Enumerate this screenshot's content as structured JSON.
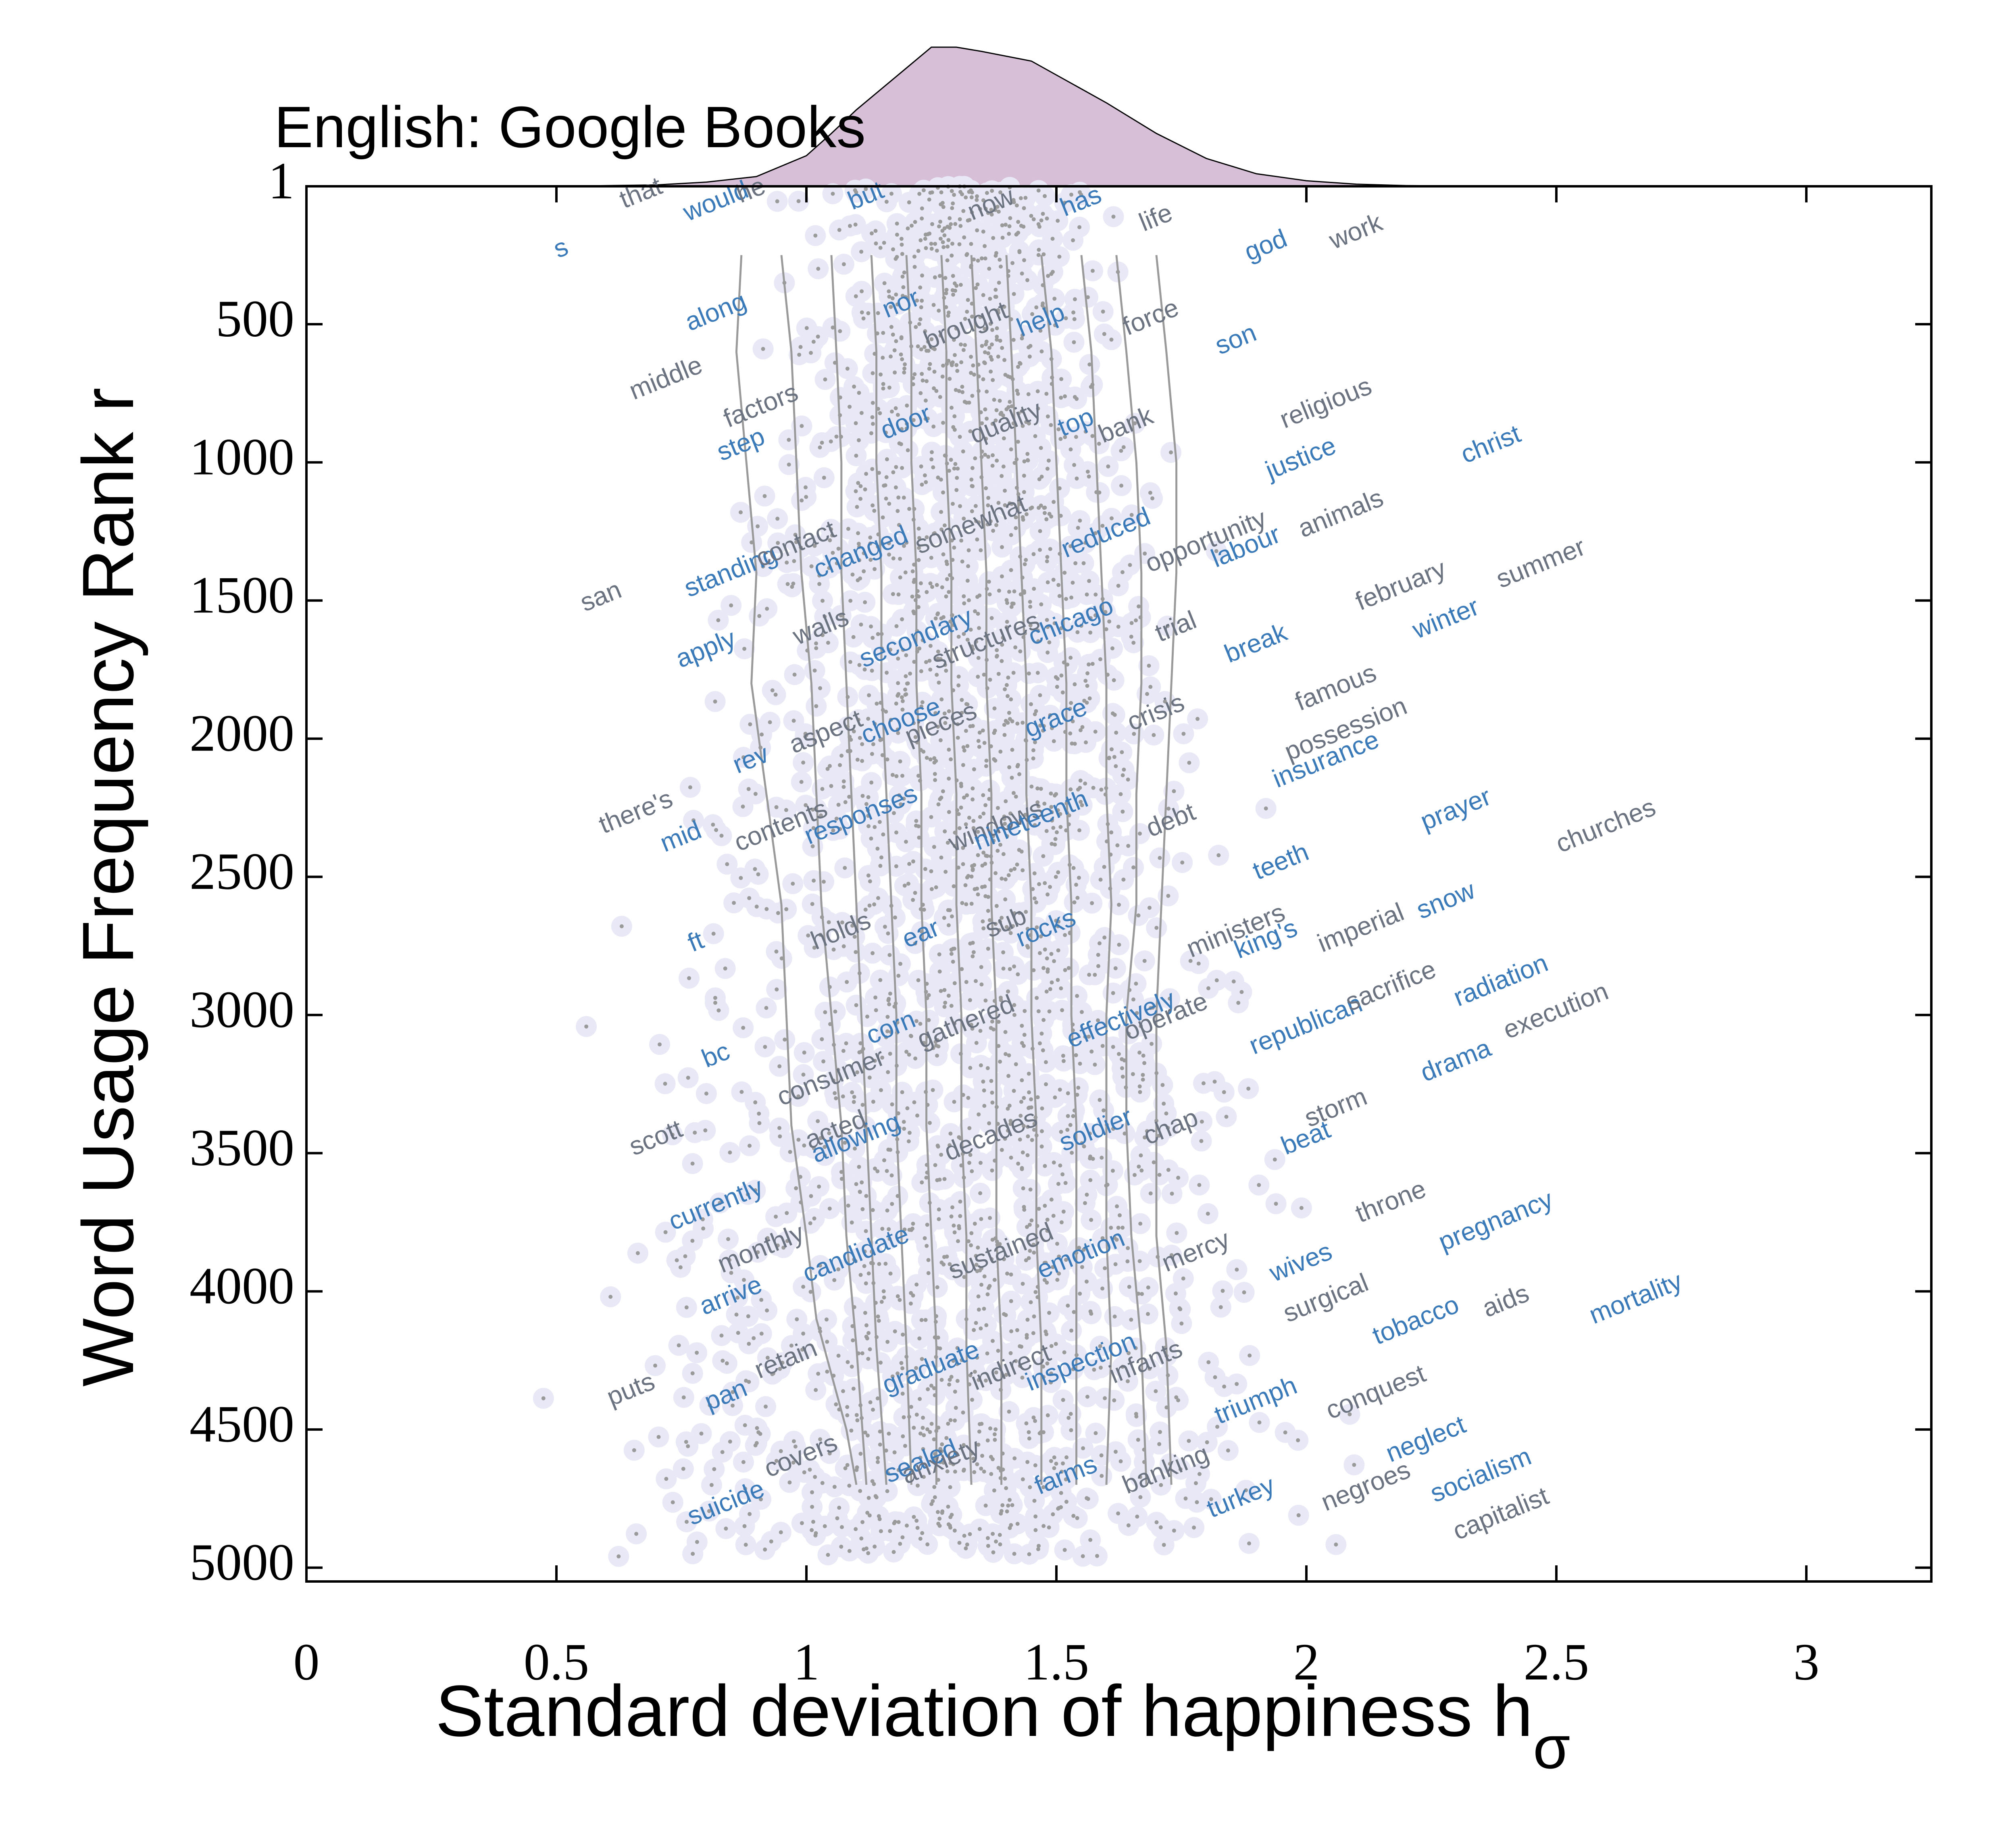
{
  "chart_data": {
    "type": "scatter",
    "title": "English: Google Books",
    "xlabel": "Standard deviation of happiness h",
    "xlabel_subscript": "σ",
    "ylabel": "Word Usage Frequency Rank r",
    "xlim": [
      0,
      3.25
    ],
    "ylim": [
      1,
      5050
    ],
    "y_inverted": true,
    "x_ticks": [
      0,
      0.5,
      1,
      1.5,
      2,
      2.5,
      3
    ],
    "x_tick_labels": [
      "0",
      "0.5",
      "1",
      "1.5",
      "2",
      "2.5",
      "3"
    ],
    "y_ticks": [
      1,
      500,
      1000,
      1500,
      2000,
      2500,
      3000,
      3500,
      4000,
      4500,
      5000
    ],
    "y_tick_labels": [
      "1",
      "500",
      "1000",
      "1500",
      "2000",
      "2500",
      "3000",
      "3500",
      "4000",
      "4500",
      "5000"
    ],
    "grid": false,
    "colors": {
      "word_blue": "#3a7ab8",
      "word_gray": "#6b7280",
      "points": "#9a9a9a",
      "halo": "#e8e8f6",
      "density_fill": "#d8bfd8",
      "contour": "#9a9a9a"
    },
    "marginal_density": {
      "x": [
        0.5,
        0.7,
        0.8,
        0.9,
        1.0,
        1.05,
        1.1,
        1.2,
        1.25,
        1.3,
        1.35,
        1.45,
        1.5,
        1.6,
        1.7,
        1.8,
        1.9,
        2.0,
        2.1,
        2.2,
        2.4
      ],
      "y": [
        0,
        0.01,
        0.03,
        0.07,
        0.22,
        0.38,
        0.55,
        0.85,
        1.0,
        1.0,
        0.97,
        0.9,
        0.8,
        0.6,
        0.38,
        0.2,
        0.09,
        0.04,
        0.015,
        0.005,
        0
      ]
    },
    "contours": [
      {
        "hsigma": [
          0.87,
          0.86,
          0.88,
          0.9,
          0.89,
          0.92,
          0.95,
          0.96,
          0.97,
          1.0,
          1.02,
          1.05,
          1.08,
          1.1
        ],
        "rank": [
          250,
          600,
          1000,
          1400,
          1800,
          2200,
          2600,
          3000,
          3400,
          3800,
          4100,
          4300,
          4500,
          4700
        ]
      },
      {
        "hsigma": [
          0.95,
          0.97,
          0.98,
          0.99,
          1.01,
          1.02,
          1.03,
          1.05,
          1.07,
          1.08,
          1.1,
          1.12
        ],
        "rank": [
          250,
          600,
          1000,
          1400,
          1800,
          2200,
          2600,
          3000,
          3400,
          3800,
          4200,
          4700
        ]
      },
      {
        "hsigma": [
          1.05,
          1.06,
          1.07,
          1.07,
          1.08,
          1.09,
          1.1,
          1.11,
          1.12,
          1.13,
          1.14,
          1.16
        ],
        "rank": [
          250,
          600,
          1000,
          1400,
          1800,
          2200,
          2600,
          3000,
          3400,
          3800,
          4200,
          4700
        ]
      },
      {
        "hsigma": [
          1.13,
          1.14,
          1.14,
          1.15,
          1.15,
          1.16,
          1.17,
          1.18,
          1.18,
          1.19,
          1.2,
          1.21
        ],
        "rank": [
          250,
          600,
          1000,
          1400,
          1800,
          2200,
          2600,
          3000,
          3400,
          3800,
          4200,
          4700
        ]
      },
      {
        "hsigma": [
          1.2,
          1.21,
          1.21,
          1.22,
          1.22,
          1.23,
          1.23,
          1.24,
          1.24,
          1.25,
          1.26,
          1.26
        ],
        "rank": [
          250,
          600,
          1000,
          1400,
          1800,
          2200,
          2600,
          3000,
          3400,
          3800,
          4200,
          4700
        ]
      },
      {
        "hsigma": [
          1.27,
          1.28,
          1.28,
          1.29,
          1.29,
          1.3,
          1.3,
          1.31,
          1.31,
          1.32,
          1.32,
          1.33
        ],
        "rank": [
          250,
          600,
          1000,
          1400,
          1800,
          2200,
          2600,
          3000,
          3400,
          3800,
          4200,
          4700
        ]
      },
      {
        "hsigma": [
          1.33,
          1.34,
          1.35,
          1.36,
          1.36,
          1.37,
          1.37,
          1.38,
          1.38,
          1.38,
          1.39,
          1.39
        ],
        "rank": [
          250,
          600,
          1000,
          1400,
          1800,
          2200,
          2600,
          3000,
          3400,
          3800,
          4200,
          4700
        ]
      },
      {
        "hsigma": [
          1.4,
          1.41,
          1.42,
          1.43,
          1.44,
          1.44,
          1.45,
          1.45,
          1.46,
          1.46,
          1.47,
          1.47
        ],
        "rank": [
          250,
          600,
          1000,
          1400,
          1800,
          2200,
          2600,
          3000,
          3400,
          3800,
          4200,
          4700
        ]
      },
      {
        "hsigma": [
          1.47,
          1.49,
          1.5,
          1.51,
          1.52,
          1.52,
          1.53,
          1.53,
          1.54,
          1.54,
          1.54,
          1.54
        ],
        "rank": [
          250,
          600,
          1000,
          1400,
          1800,
          2200,
          2600,
          3000,
          3400,
          3800,
          4200,
          4700
        ]
      },
      {
        "hsigma": [
          1.55,
          1.57,
          1.58,
          1.59,
          1.6,
          1.6,
          1.61,
          1.6,
          1.6,
          1.6,
          1.61,
          1.6
        ],
        "rank": [
          250,
          600,
          1000,
          1400,
          1800,
          2200,
          2600,
          3000,
          3400,
          3800,
          4200,
          4700
        ]
      },
      {
        "hsigma": [
          1.62,
          1.64,
          1.66,
          1.67,
          1.67,
          1.66,
          1.66,
          1.64,
          1.64,
          1.65,
          1.67,
          1.68
        ],
        "rank": [
          250,
          600,
          1000,
          1400,
          1800,
          2200,
          2600,
          3000,
          3400,
          3800,
          4200,
          4700
        ]
      },
      {
        "hsigma": [
          1.7,
          1.72,
          1.74,
          1.74,
          1.73,
          1.72,
          1.71,
          1.7,
          1.7,
          1.7,
          1.72,
          1.73
        ],
        "rank": [
          250,
          600,
          1000,
          1400,
          1800,
          2200,
          2600,
          3000,
          3400,
          3800,
          4200,
          4700
        ]
      }
    ],
    "words": [
      {
        "w": "s",
        "x": 0.51,
        "r": 230,
        "c": "blue"
      },
      {
        "w": "that",
        "x": 0.67,
        "r": 30,
        "c": "gray"
      },
      {
        "w": "would",
        "x": 0.82,
        "r": 60,
        "c": "blue"
      },
      {
        "w": "he",
        "x": 0.89,
        "r": 20,
        "c": "gray"
      },
      {
        "w": "but",
        "x": 1.12,
        "r": 40,
        "c": "blue"
      },
      {
        "w": "now",
        "x": 1.37,
        "r": 70,
        "c": "gray"
      },
      {
        "w": "has",
        "x": 1.55,
        "r": 60,
        "c": "blue"
      },
      {
        "w": "life",
        "x": 1.7,
        "r": 120,
        "c": "gray"
      },
      {
        "w": "god",
        "x": 1.92,
        "r": 220,
        "c": "blue"
      },
      {
        "w": "work",
        "x": 2.1,
        "r": 170,
        "c": "gray"
      },
      {
        "w": "along",
        "x": 0.82,
        "r": 460,
        "c": "blue"
      },
      {
        "w": "middle",
        "x": 0.72,
        "r": 700,
        "c": "gray"
      },
      {
        "w": "nor",
        "x": 1.19,
        "r": 430,
        "c": "blue"
      },
      {
        "w": "brought",
        "x": 1.32,
        "r": 510,
        "c": "gray"
      },
      {
        "w": "help",
        "x": 1.47,
        "r": 490,
        "c": "blue"
      },
      {
        "w": "force",
        "x": 1.69,
        "r": 480,
        "c": "gray"
      },
      {
        "w": "son",
        "x": 1.86,
        "r": 560,
        "c": "blue"
      },
      {
        "w": "religious",
        "x": 2.04,
        "r": 790,
        "c": "gray"
      },
      {
        "w": "factors",
        "x": 0.91,
        "r": 800,
        "c": "gray"
      },
      {
        "w": "step",
        "x": 0.87,
        "r": 940,
        "c": "blue"
      },
      {
        "w": "door",
        "x": 1.2,
        "r": 860,
        "c": "blue"
      },
      {
        "w": "quality",
        "x": 1.4,
        "r": 860,
        "c": "gray"
      },
      {
        "w": "top",
        "x": 1.54,
        "r": 860,
        "c": "blue"
      },
      {
        "w": "bank",
        "x": 1.64,
        "r": 870,
        "c": "gray"
      },
      {
        "w": "justice",
        "x": 1.99,
        "r": 990,
        "c": "blue"
      },
      {
        "w": "christ",
        "x": 2.37,
        "r": 940,
        "c": "blue"
      },
      {
        "w": "standing",
        "x": 0.85,
        "r": 1400,
        "c": "blue"
      },
      {
        "w": "contact",
        "x": 0.98,
        "r": 1300,
        "c": "gray"
      },
      {
        "w": "changed",
        "x": 1.11,
        "r": 1330,
        "c": "blue"
      },
      {
        "w": "somewhat",
        "x": 1.33,
        "r": 1230,
        "c": "gray"
      },
      {
        "w": "reduced",
        "x": 1.6,
        "r": 1260,
        "c": "blue"
      },
      {
        "w": "opportunity",
        "x": 1.8,
        "r": 1290,
        "c": "gray"
      },
      {
        "w": "labour",
        "x": 1.88,
        "r": 1310,
        "c": "blue"
      },
      {
        "w": "animals",
        "x": 2.07,
        "r": 1190,
        "c": "gray"
      },
      {
        "w": "san",
        "x": 0.59,
        "r": 1490,
        "c": "gray"
      },
      {
        "w": "february",
        "x": 2.19,
        "r": 1450,
        "c": "gray"
      },
      {
        "w": "summer",
        "x": 2.47,
        "r": 1370,
        "c": "gray"
      },
      {
        "w": "apply",
        "x": 0.8,
        "r": 1680,
        "c": "blue"
      },
      {
        "w": "walls",
        "x": 1.03,
        "r": 1600,
        "c": "gray"
      },
      {
        "w": "secondary",
        "x": 1.22,
        "r": 1640,
        "c": "blue"
      },
      {
        "w": "structures",
        "x": 1.36,
        "r": 1650,
        "c": "gray"
      },
      {
        "w": "chicago",
        "x": 1.53,
        "r": 1580,
        "c": "blue"
      },
      {
        "w": "trial",
        "x": 1.74,
        "r": 1600,
        "c": "gray"
      },
      {
        "w": "break",
        "x": 1.9,
        "r": 1660,
        "c": "blue"
      },
      {
        "w": "winter",
        "x": 2.28,
        "r": 1570,
        "c": "blue"
      },
      {
        "w": "famous",
        "x": 2.06,
        "r": 1820,
        "c": "gray"
      },
      {
        "w": "aspect",
        "x": 1.04,
        "r": 1980,
        "c": "gray"
      },
      {
        "w": "choose",
        "x": 1.19,
        "r": 1940,
        "c": "blue"
      },
      {
        "w": "pieces",
        "x": 1.27,
        "r": 1950,
        "c": "gray"
      },
      {
        "w": "grace",
        "x": 1.5,
        "r": 1930,
        "c": "blue"
      },
      {
        "w": "crisis",
        "x": 1.7,
        "r": 1910,
        "c": "gray"
      },
      {
        "w": "possession",
        "x": 2.08,
        "r": 1970,
        "c": "gray"
      },
      {
        "w": "rev",
        "x": 0.89,
        "r": 2080,
        "c": "blue"
      },
      {
        "w": "insurance",
        "x": 2.04,
        "r": 2080,
        "c": "blue"
      },
      {
        "w": "there's",
        "x": 0.66,
        "r": 2270,
        "c": "gray"
      },
      {
        "w": "mid",
        "x": 0.75,
        "r": 2360,
        "c": "blue"
      },
      {
        "w": "contents",
        "x": 0.95,
        "r": 2320,
        "c": "gray"
      },
      {
        "w": "responses",
        "x": 1.11,
        "r": 2280,
        "c": "blue"
      },
      {
        "w": "windows",
        "x": 1.38,
        "r": 2320,
        "c": "gray"
      },
      {
        "w": "nineteenth",
        "x": 1.45,
        "r": 2300,
        "c": "blue"
      },
      {
        "w": "debt",
        "x": 1.73,
        "r": 2300,
        "c": "gray"
      },
      {
        "w": "prayer",
        "x": 2.3,
        "r": 2260,
        "c": "blue"
      },
      {
        "w": "churches",
        "x": 2.6,
        "r": 2320,
        "c": "gray"
      },
      {
        "w": "teeth",
        "x": 1.95,
        "r": 2450,
        "c": "blue"
      },
      {
        "w": "snow",
        "x": 2.28,
        "r": 2590,
        "c": "blue"
      },
      {
        "w": "ft",
        "x": 0.78,
        "r": 2740,
        "c": "blue"
      },
      {
        "w": "holds",
        "x": 1.07,
        "r": 2700,
        "c": "gray"
      },
      {
        "w": "ear",
        "x": 1.23,
        "r": 2710,
        "c": "blue"
      },
      {
        "w": "sub",
        "x": 1.4,
        "r": 2670,
        "c": "gray"
      },
      {
        "w": "rocks",
        "x": 1.48,
        "r": 2690,
        "c": "blue"
      },
      {
        "w": "ministers",
        "x": 1.86,
        "r": 2700,
        "c": "gray"
      },
      {
        "w": "king's",
        "x": 1.92,
        "r": 2730,
        "c": "blue"
      },
      {
        "w": "imperial",
        "x": 2.11,
        "r": 2690,
        "c": "gray"
      },
      {
        "w": "radiation",
        "x": 2.39,
        "r": 2880,
        "c": "blue"
      },
      {
        "w": "corn",
        "x": 1.17,
        "r": 3050,
        "c": "blue"
      },
      {
        "w": "gathered",
        "x": 1.32,
        "r": 3030,
        "c": "gray"
      },
      {
        "w": "effectively",
        "x": 1.63,
        "r": 3020,
        "c": "blue"
      },
      {
        "w": "operate",
        "x": 1.72,
        "r": 3010,
        "c": "gray"
      },
      {
        "w": "republican",
        "x": 2.0,
        "r": 3040,
        "c": "blue"
      },
      {
        "w": "sacrifice",
        "x": 2.17,
        "r": 2900,
        "c": "gray"
      },
      {
        "w": "execution",
        "x": 2.5,
        "r": 2990,
        "c": "gray"
      },
      {
        "w": "bc",
        "x": 0.82,
        "r": 3150,
        "c": "blue"
      },
      {
        "w": "consumer",
        "x": 1.05,
        "r": 3230,
        "c": "gray"
      },
      {
        "w": "drama",
        "x": 2.3,
        "r": 3170,
        "c": "blue"
      },
      {
        "w": "scott",
        "x": 0.7,
        "r": 3450,
        "c": "gray"
      },
      {
        "w": "acted",
        "x": 1.06,
        "r": 3420,
        "c": "gray"
      },
      {
        "w": "allowing",
        "x": 1.1,
        "r": 3450,
        "c": "blue"
      },
      {
        "w": "decades",
        "x": 1.37,
        "r": 3440,
        "c": "gray"
      },
      {
        "w": "soldier",
        "x": 1.58,
        "r": 3420,
        "c": "blue"
      },
      {
        "w": "chap",
        "x": 1.73,
        "r": 3410,
        "c": "gray"
      },
      {
        "w": "storm",
        "x": 2.06,
        "r": 3340,
        "c": "gray"
      },
      {
        "w": "beat",
        "x": 2.0,
        "r": 3450,
        "c": "blue"
      },
      {
        "w": "currently",
        "x": 0.82,
        "r": 3690,
        "c": "blue"
      },
      {
        "w": "throne",
        "x": 2.17,
        "r": 3680,
        "c": "gray"
      },
      {
        "w": "pregnancy",
        "x": 2.38,
        "r": 3750,
        "c": "blue"
      },
      {
        "w": "monthly",
        "x": 0.91,
        "r": 3850,
        "c": "gray"
      },
      {
        "w": "candidate",
        "x": 1.1,
        "r": 3870,
        "c": "blue"
      },
      {
        "w": "sustained",
        "x": 1.39,
        "r": 3860,
        "c": "gray"
      },
      {
        "w": "emotion",
        "x": 1.55,
        "r": 3870,
        "c": "blue"
      },
      {
        "w": "mercy",
        "x": 1.78,
        "r": 3860,
        "c": "gray"
      },
      {
        "w": "wives",
        "x": 1.99,
        "r": 3900,
        "c": "blue"
      },
      {
        "w": "arrive",
        "x": 0.85,
        "r": 4020,
        "c": "blue"
      },
      {
        "w": "surgical",
        "x": 2.04,
        "r": 4030,
        "c": "gray"
      },
      {
        "w": "tobacco",
        "x": 2.22,
        "r": 4110,
        "c": "blue"
      },
      {
        "w": "aids",
        "x": 2.4,
        "r": 4040,
        "c": "gray"
      },
      {
        "w": "mortality",
        "x": 2.66,
        "r": 4030,
        "c": "blue"
      },
      {
        "w": "puts",
        "x": 0.65,
        "r": 4360,
        "c": "gray"
      },
      {
        "w": "retain",
        "x": 0.96,
        "r": 4250,
        "c": "gray"
      },
      {
        "w": "pan",
        "x": 0.84,
        "r": 4380,
        "c": "blue"
      },
      {
        "w": "graduate",
        "x": 1.25,
        "r": 4280,
        "c": "blue"
      },
      {
        "w": "indirect",
        "x": 1.41,
        "r": 4280,
        "c": "gray"
      },
      {
        "w": "inspection",
        "x": 1.55,
        "r": 4260,
        "c": "blue"
      },
      {
        "w": "infants",
        "x": 1.68,
        "r": 4260,
        "c": "gray"
      },
      {
        "w": "triumph",
        "x": 1.9,
        "r": 4400,
        "c": "blue"
      },
      {
        "w": "conquest",
        "x": 2.14,
        "r": 4370,
        "c": "gray"
      },
      {
        "w": "covers",
        "x": 0.99,
        "r": 4600,
        "c": "gray"
      },
      {
        "w": "sealed",
        "x": 1.23,
        "r": 4620,
        "c": "blue"
      },
      {
        "w": "anxiety",
        "x": 1.27,
        "r": 4620,
        "c": "gray"
      },
      {
        "w": "farms",
        "x": 1.52,
        "r": 4670,
        "c": "blue"
      },
      {
        "w": "banking",
        "x": 1.72,
        "r": 4650,
        "c": "gray"
      },
      {
        "w": "neglect",
        "x": 2.24,
        "r": 4540,
        "c": "blue"
      },
      {
        "w": "negroes",
        "x": 2.12,
        "r": 4710,
        "c": "gray"
      },
      {
        "w": "socialism",
        "x": 2.35,
        "r": 4670,
        "c": "blue"
      },
      {
        "w": "suicide",
        "x": 0.84,
        "r": 4770,
        "c": "blue"
      },
      {
        "w": "turkey",
        "x": 1.87,
        "r": 4750,
        "c": "blue"
      },
      {
        "w": "capitalist",
        "x": 2.39,
        "r": 4810,
        "c": "gray"
      }
    ]
  }
}
